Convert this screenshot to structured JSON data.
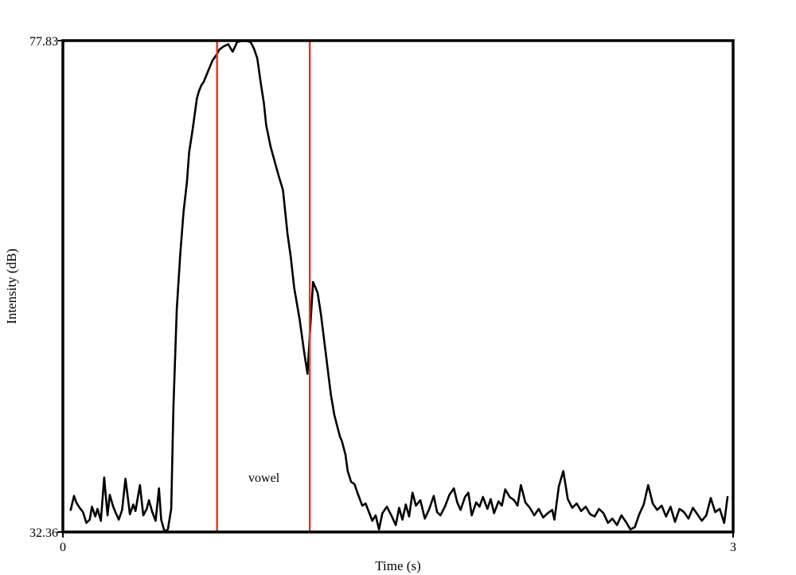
{
  "chart_data": {
    "type": "line",
    "title": "",
    "xlabel": "Time (s)",
    "ylabel": "Intensity (dB)",
    "xlim": [
      0,
      3
    ],
    "ylim": [
      32.36,
      77.83
    ],
    "x_tick_labels": [
      "0",
      "3"
    ],
    "y_tick_labels": [
      "32.36",
      "77.83"
    ],
    "grid": false,
    "legend": "none",
    "colors": {
      "curve": "#000000",
      "boundaries": "#e8321e",
      "frame": "#000000"
    },
    "boundaries": [
      0.69,
      1.105
    ],
    "annotations": [
      {
        "text": "vowel",
        "x": 0.9,
        "y": 37.0
      }
    ],
    "series": [
      {
        "x": [
          0.035,
          0.05,
          0.06,
          0.075,
          0.09,
          0.105,
          0.12,
          0.13,
          0.145,
          0.155,
          0.17,
          0.185,
          0.2,
          0.21,
          0.225,
          0.235,
          0.25,
          0.265,
          0.28,
          0.3,
          0.315,
          0.325,
          0.345,
          0.36,
          0.375,
          0.385,
          0.4,
          0.415,
          0.43,
          0.44,
          0.455,
          0.47,
          0.485,
          0.495,
          0.51,
          0.525,
          0.54,
          0.555,
          0.565,
          0.58,
          0.59,
          0.6,
          0.61,
          0.62,
          0.63,
          0.64,
          0.65,
          0.66,
          0.67,
          0.68,
          0.69,
          0.7,
          0.72,
          0.74,
          0.76,
          0.78,
          0.8,
          0.82,
          0.84,
          0.855,
          0.87,
          0.885,
          0.9,
          0.91,
          0.93,
          0.95,
          0.965,
          0.985,
          0.995,
          1.005,
          1.02,
          1.035,
          1.06,
          1.08,
          1.095,
          1.105,
          1.12,
          1.14,
          1.155,
          1.17,
          1.185,
          1.2,
          1.215,
          1.23,
          1.24,
          1.25,
          1.265,
          1.275,
          1.29,
          1.305,
          1.32,
          1.34,
          1.355,
          1.37,
          1.385,
          1.4,
          1.415,
          1.43,
          1.45,
          1.47,
          1.49,
          1.505,
          1.52,
          1.535,
          1.55,
          1.565,
          1.58,
          1.6,
          1.62,
          1.64,
          1.66,
          1.675,
          1.69,
          1.71,
          1.73,
          1.75,
          1.765,
          1.78,
          1.8,
          1.815,
          1.83,
          1.85,
          1.865,
          1.88,
          1.9,
          1.915,
          1.93,
          1.95,
          1.965,
          1.98,
          2.0,
          2.02,
          2.035,
          2.05,
          2.07,
          2.09,
          2.11,
          2.13,
          2.15,
          2.17,
          2.19,
          2.2,
          2.22,
          2.24,
          2.26,
          2.28,
          2.3,
          2.32,
          2.34,
          2.36,
          2.38,
          2.4,
          2.42,
          2.44,
          2.46,
          2.48,
          2.5,
          2.52,
          2.54,
          2.56,
          2.58,
          2.6,
          2.62,
          2.64,
          2.66,
          2.68,
          2.7,
          2.72,
          2.74,
          2.76,
          2.78,
          2.8,
          2.82,
          2.84,
          2.86,
          2.88,
          2.9,
          2.92,
          2.94,
          2.96,
          2.975
        ],
        "y": [
          34.4,
          35.7,
          35.1,
          34.6,
          34.2,
          33.2,
          33.5,
          34.7,
          33.8,
          34.5,
          33.4,
          37.4,
          33.9,
          35.8,
          34.7,
          34.2,
          33.5,
          34.4,
          37.3,
          34.0,
          34.9,
          34.3,
          36.7,
          33.9,
          34.5,
          35.3,
          34.2,
          33.4,
          36.4,
          33.5,
          32.4,
          32.6,
          34.5,
          44.0,
          53.0,
          58.0,
          62.0,
          64.7,
          67.5,
          69.5,
          71.0,
          72.5,
          73.2,
          73.7,
          74.0,
          74.5,
          75.0,
          75.5,
          76.0,
          76.3,
          76.6,
          77.0,
          77.3,
          77.5,
          76.8,
          77.7,
          77.8,
          77.8,
          77.7,
          77.1,
          76.2,
          74.0,
          72.0,
          70.0,
          68.0,
          66.5,
          65.4,
          64.0,
          62.0,
          60.0,
          57.8,
          55.0,
          52.0,
          49.0,
          47.0,
          50.5,
          55.5,
          54.5,
          52.5,
          50.0,
          47.5,
          45.0,
          43.2,
          42.0,
          41.2,
          40.7,
          39.5,
          38.0,
          37.0,
          36.8,
          35.9,
          34.8,
          35.0,
          34.2,
          33.4,
          33.9,
          32.6,
          34.1,
          34.7,
          33.9,
          33.0,
          34.6,
          33.5,
          34.9,
          33.8,
          36.0,
          34.8,
          35.3,
          33.6,
          34.5,
          35.7,
          34.2,
          33.9,
          34.7,
          35.8,
          36.4,
          35.1,
          34.4,
          35.6,
          36.0,
          33.9,
          35.1,
          34.7,
          35.6,
          34.5,
          35.4,
          34.1,
          35.2,
          34.8,
          36.3,
          35.6,
          35.3,
          34.8,
          36.7,
          35.1,
          34.6,
          33.9,
          34.5,
          33.7,
          34.1,
          34.4,
          33.5,
          36.6,
          38.0,
          35.4,
          34.6,
          35.0,
          34.3,
          34.7,
          34.0,
          33.8,
          34.5,
          34.1,
          33.2,
          33.6,
          33.0,
          33.9,
          33.3,
          32.6,
          32.8,
          34.0,
          34.9,
          36.7,
          35.0,
          34.4,
          34.8,
          33.8,
          34.7,
          33.3,
          34.5,
          34.2,
          33.6,
          34.6,
          34.0,
          33.4,
          33.9,
          35.5,
          34.2,
          34.5,
          33.2,
          35.6
        ]
      }
    ]
  }
}
